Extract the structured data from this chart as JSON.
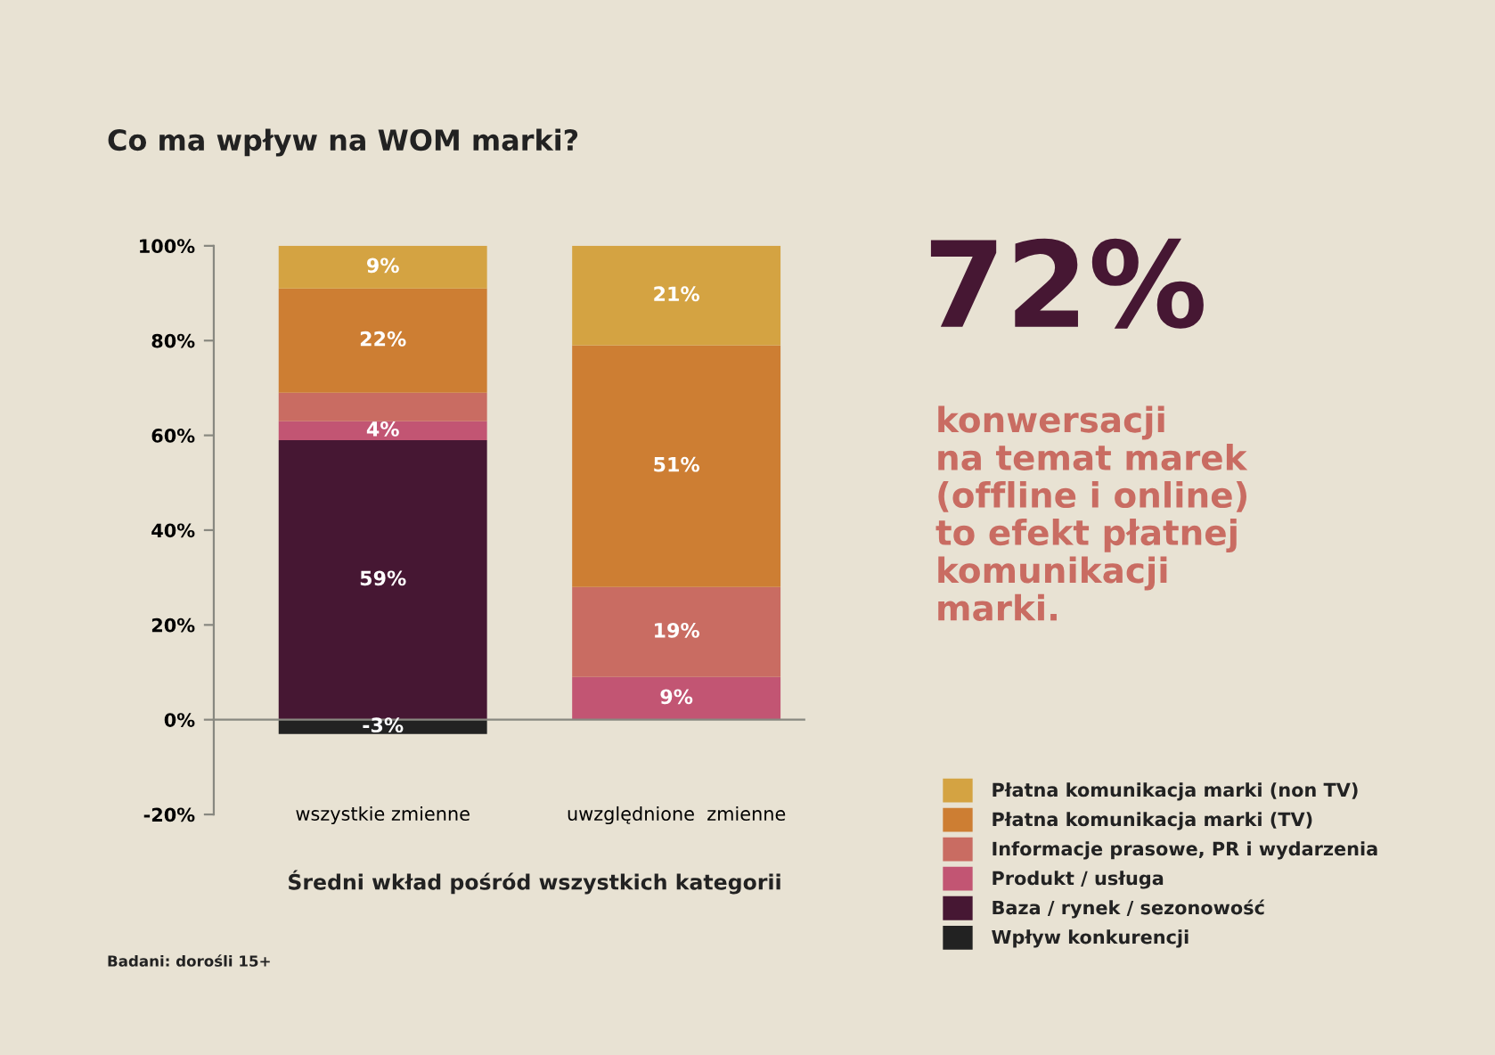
{
  "chart_data": {
    "type": "bar",
    "stacked": true,
    "title": "Co ma wpływ na WOM marki?",
    "xlabel": "Średni wkład pośród wszystkich kategorii",
    "categories": [
      "wszystkie zmienne",
      "uwzględnione  zmienne"
    ],
    "series": [
      {
        "name": "Wpływ konkurencji",
        "color": "#222222",
        "values": [
          -3,
          null
        ],
        "value_labels": [
          "-3%",
          null
        ]
      },
      {
        "name": "Baza / rynek / sezonowość",
        "color": "#461733",
        "values": [
          59,
          null
        ],
        "value_labels": [
          "59%",
          null
        ]
      },
      {
        "name": "Produkt / usługa",
        "color": "#c25573",
        "values": [
          4,
          9
        ],
        "value_labels": [
          "4%",
          "9%"
        ]
      },
      {
        "name": "Informacje prasowe, PR i wydarzenia",
        "color": "#c96c62",
        "values": [
          6,
          19
        ],
        "value_labels": [
          null,
          "19%"
        ]
      },
      {
        "name": "Płatna komunikacja marki (TV)",
        "color": "#cd7e33",
        "values": [
          22,
          51
        ],
        "value_labels": [
          "22%",
          "51%"
        ]
      },
      {
        "name": "Płatna komunikacja marki (non TV)",
        "color": "#d4a342",
        "values": [
          9,
          21
        ],
        "value_labels": [
          "9%",
          "21%"
        ]
      }
    ],
    "ylim": [
      -20,
      100
    ],
    "yticks": [
      {
        "value": -20,
        "label": "-20%"
      },
      {
        "value": 0,
        "label": "0%"
      },
      {
        "value": 20,
        "label": "20%"
      },
      {
        "value": 40,
        "label": "40%"
      },
      {
        "value": 60,
        "label": "60%"
      },
      {
        "value": 80,
        "label": "80%"
      },
      {
        "value": 100,
        "label": "100%"
      }
    ],
    "legend": "right",
    "annotations": [
      "72%",
      "konwersacji\nna temat marek\n(offline i online)\nto efekt płatnej\nkomunikacji\nmarki.",
      "Badani: dorośli 15+"
    ]
  }
}
